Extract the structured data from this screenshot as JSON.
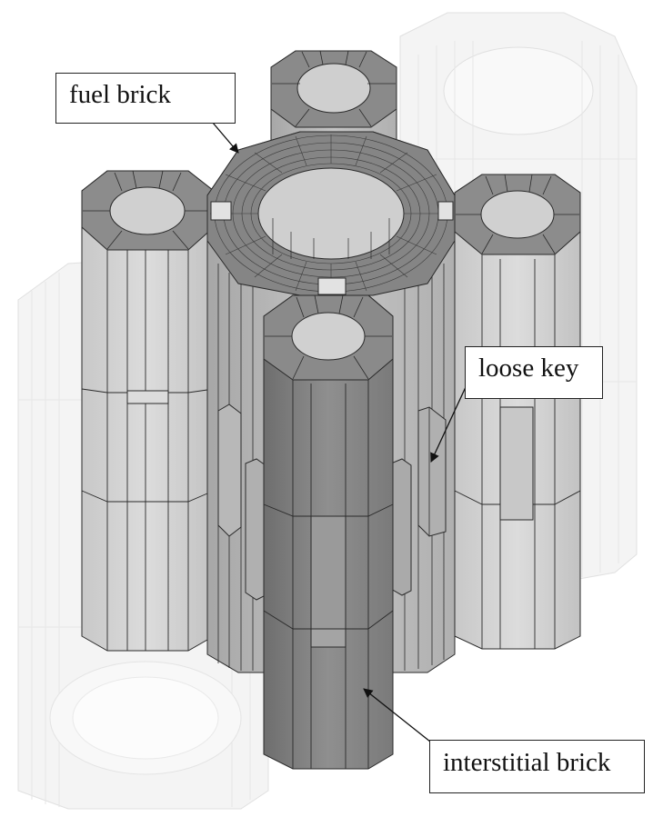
{
  "labels": {
    "fuel_brick": "fuel brick",
    "loose_key": "loose key",
    "interstitial_brick": "interstitial brick"
  },
  "colors": {
    "background": "#ffffff",
    "brick_light": "#d4d4d4",
    "brick_mid": "#b9b9b9",
    "brick_dark": "#8e8e8e",
    "ghost": "#e9e9e9",
    "edge": "#2a2a2a"
  }
}
